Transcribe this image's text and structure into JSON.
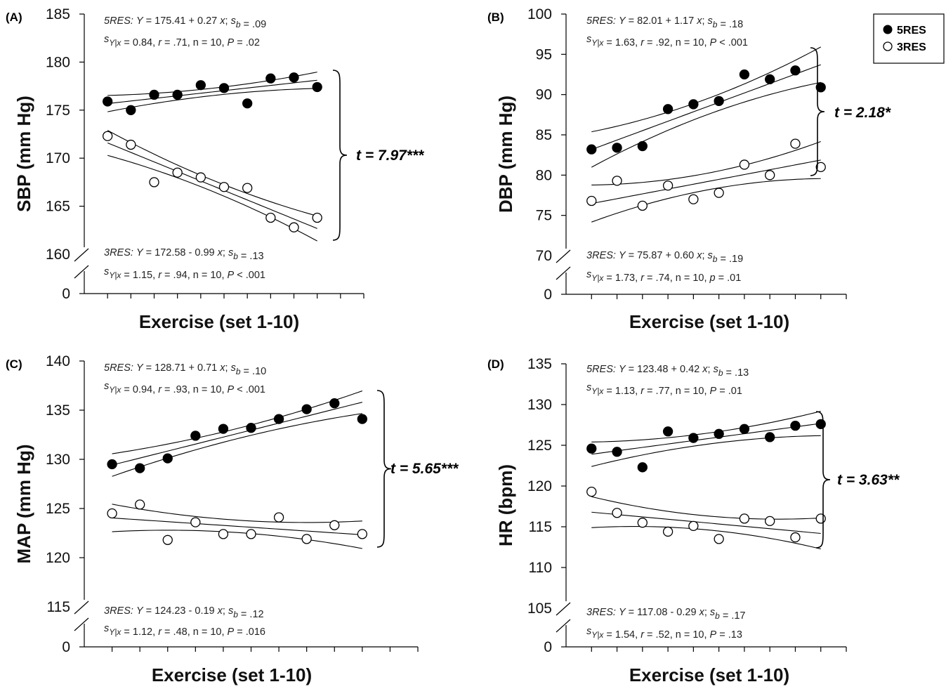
{
  "legend": {
    "items": [
      {
        "label": "5RES",
        "marker": "filled-circle"
      },
      {
        "label": "3RES",
        "marker": "open-circle"
      }
    ]
  },
  "chart_data": [
    {
      "type": "scatter",
      "panel_label": "(A)",
      "xlabel": "Exercise (set 1-10)",
      "ylabel": "SBP (mm Hg)",
      "y_ticks": [
        160,
        165,
        170,
        175,
        180,
        185
      ],
      "y_zero_label": "0",
      "ylim": [
        160,
        185
      ],
      "xlim": [
        0,
        12
      ],
      "axis_break": true,
      "series": [
        {
          "name": "5RES",
          "marker": "filled",
          "x": [
            1,
            2,
            3,
            4,
            5,
            6,
            7,
            8,
            9,
            10
          ],
          "y": [
            175.9,
            175.0,
            176.6,
            176.6,
            177.6,
            177.3,
            175.7,
            178.3,
            178.4,
            177.4
          ],
          "fit": {
            "intercept": 175.41,
            "slope": 0.27,
            "ci_half_width": 0.85
          },
          "equation": "5RES: Y = 175.41 + 0.27 x; sb = .09",
          "stats": "sY|x = 0.84, r = .71, n = 10, P = .02"
        },
        {
          "name": "3RES",
          "marker": "open",
          "x": [
            1,
            2,
            3,
            4,
            5,
            6,
            7,
            8,
            9,
            10
          ],
          "y": [
            172.3,
            171.4,
            167.5,
            168.5,
            168.0,
            167.0,
            166.9,
            163.8,
            162.8,
            163.8
          ],
          "fit": {
            "intercept": 172.58,
            "slope": -0.99,
            "ci_half_width": 1.3
          },
          "equation": "3RES: Y = 172.58 - 0.99 x; sb = .13",
          "stats": "sY|x = 1.15, r = .94, n = 10, P < .001"
        }
      ],
      "annotation": "t = 7.97***"
    },
    {
      "type": "scatter",
      "panel_label": "(B)",
      "xlabel": "Exercise (set 1-10)",
      "ylabel": "DBP (mm Hg)",
      "y_ticks": [
        70,
        75,
        80,
        85,
        90,
        95,
        100
      ],
      "y_zero_label": "0",
      "ylim": [
        70,
        100
      ],
      "xlim": [
        0,
        11
      ],
      "axis_break": true,
      "series": [
        {
          "name": "5RES",
          "marker": "filled",
          "x": [
            1,
            2,
            3,
            4,
            5,
            6,
            7,
            8,
            9,
            10
          ],
          "y": [
            83.2,
            83.4,
            83.6,
            88.2,
            88.8,
            89.2,
            92.5,
            91.9,
            93.0,
            90.9
          ],
          "fit": {
            "intercept": 82.01,
            "slope": 1.17,
            "ci_half_width": 2.2
          },
          "equation": "5RES: Y = 82.01 + 1.17 x; sb = .18",
          "stats": "sY|x = 1.63, r = .92, n = 10, P < .001"
        },
        {
          "name": "3RES",
          "marker": "open",
          "x": [
            1,
            2,
            3,
            4,
            5,
            6,
            7,
            8,
            9,
            10
          ],
          "y": [
            76.8,
            79.3,
            76.2,
            78.7,
            77.0,
            77.8,
            81.3,
            80.0,
            83.9,
            81.0
          ],
          "fit": {
            "intercept": 75.87,
            "slope": 0.6,
            "ci_half_width": 2.3
          },
          "equation": "3RES: Y = 75.87 + 0.60 x; sb = .19",
          "stats": "sY|x = 1.73, r = .74, n = 10, p = .01"
        }
      ],
      "annotation": "t = 2.18*"
    },
    {
      "type": "scatter",
      "panel_label": "(C)",
      "xlabel": "Exercise (set 1-10)",
      "ylabel": "MAP (mm Hg)",
      "y_ticks": [
        115,
        120,
        125,
        130,
        135,
        140
      ],
      "y_zero_label": "0",
      "ylim": [
        115,
        140
      ],
      "xlim": [
        0,
        12
      ],
      "axis_break": true,
      "series": [
        {
          "name": "5RES",
          "marker": "filled",
          "x": [
            1,
            2,
            3,
            4,
            5,
            6,
            7,
            8,
            9,
            10
          ],
          "y": [
            129.5,
            129.1,
            130.1,
            132.4,
            133.1,
            133.2,
            134.1,
            135.1,
            135.7,
            134.1
          ],
          "fit": {
            "intercept": 128.71,
            "slope": 0.71,
            "ci_half_width": 1.15
          },
          "equation": "5RES: Y = 128.71 + 0.71 x; sb = .10",
          "stats": "sY|x = 0.94, r = .93, n = 10, P < .001"
        },
        {
          "name": "3RES",
          "marker": "open",
          "x": [
            1,
            2,
            3,
            4,
            5,
            6,
            7,
            8,
            9,
            10
          ],
          "y": [
            124.5,
            125.4,
            121.8,
            123.6,
            122.4,
            122.4,
            124.1,
            121.9,
            123.3,
            122.4
          ],
          "fit": {
            "intercept": 124.23,
            "slope": -0.19,
            "ci_half_width": 1.4
          },
          "equation": "3RES: Y = 124.23 - 0.19 x; sb = .12",
          "stats": "sY|x = 1.12, r = .48, n = 10, P = .016"
        }
      ],
      "annotation": "t = 5.65***"
    },
    {
      "type": "scatter",
      "panel_label": "(D)",
      "xlabel": "Exercise (set 1-10)",
      "ylabel": "HR (bpm)",
      "y_ticks": [
        105,
        110,
        115,
        120,
        125,
        130,
        135
      ],
      "y_zero_label": "0",
      "ylim": [
        105,
        135
      ],
      "xlim": [
        0,
        11
      ],
      "axis_break": true,
      "series": [
        {
          "name": "5RES",
          "marker": "filled",
          "x": [
            1,
            2,
            3,
            4,
            5,
            6,
            7,
            8,
            9,
            10
          ],
          "y": [
            124.6,
            124.2,
            122.3,
            126.7,
            125.9,
            126.4,
            127.0,
            126.0,
            127.4,
            127.6
          ],
          "fit": {
            "intercept": 123.48,
            "slope": 0.42,
            "ci_half_width": 1.5
          },
          "equation": "5RES: Y = 123.48 + 0.42 x; sb = .13",
          "stats": "sY|x = 1.13, r = .77, n = 10, P = .01"
        },
        {
          "name": "3RES",
          "marker": "open",
          "x": [
            1,
            2,
            3,
            4,
            5,
            6,
            7,
            8,
            9,
            10
          ],
          "y": [
            119.3,
            116.7,
            115.5,
            114.4,
            115.1,
            113.5,
            116.0,
            115.7,
            113.7,
            116.0
          ],
          "fit": {
            "intercept": 117.08,
            "slope": -0.29,
            "ci_half_width": 1.9
          },
          "equation": "3RES: Y = 117.08 - 0.29 x; sb = .17",
          "stats": "sY|x = 1.54, r = .52, n = 10, P = .13"
        }
      ],
      "annotation": "t = 3.63**"
    }
  ]
}
